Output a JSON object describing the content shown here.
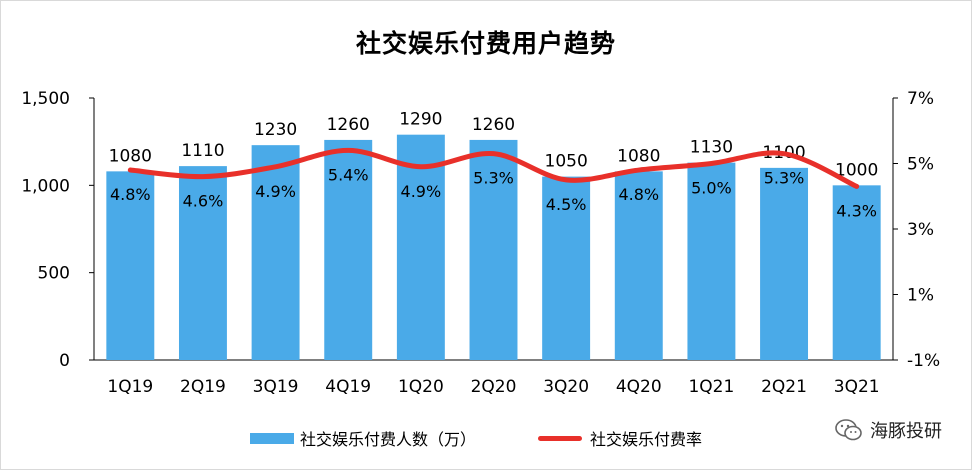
{
  "chart_data": {
    "type": "bar",
    "title": "社交娱乐付费用户趋势",
    "categories": [
      "1Q19",
      "2Q19",
      "3Q19",
      "4Q19",
      "1Q20",
      "2Q20",
      "3Q20",
      "4Q20",
      "1Q21",
      "2Q21",
      "3Q21"
    ],
    "series": [
      {
        "name": "社交娱乐付费人数（万）",
        "type": "bar",
        "axis": "left",
        "color": "#4aaae8",
        "values": [
          1080,
          1110,
          1230,
          1260,
          1290,
          1260,
          1050,
          1080,
          1130,
          1100,
          1000
        ]
      },
      {
        "name": "社交娱乐付费率",
        "type": "line",
        "axis": "right",
        "color": "#e8302a",
        "values": [
          4.8,
          4.6,
          4.9,
          5.4,
          4.9,
          5.3,
          4.5,
          4.8,
          5.0,
          5.3,
          4.3
        ],
        "labels": [
          "4.8%",
          "4.6%",
          "4.9%",
          "5.4%",
          "4.9%",
          "5.3%",
          "4.5%",
          "4.8%",
          "5.0%",
          "5.3%",
          "4.3%"
        ]
      }
    ],
    "y_left": {
      "min": 0,
      "max": 1500,
      "ticks": [
        0,
        500,
        1000,
        1500
      ],
      "tick_labels": [
        "0",
        "500",
        "1,000",
        "1,500"
      ]
    },
    "y_right": {
      "min": -1,
      "max": 7,
      "ticks": [
        -1,
        1,
        3,
        5,
        7
      ],
      "tick_labels": [
        "-1%",
        "1%",
        "3%",
        "5%",
        "7%"
      ]
    },
    "grid": false,
    "legend_position": "bottom"
  },
  "watermark": {
    "text": "海豚投研",
    "icon": "wechat-icon"
  }
}
